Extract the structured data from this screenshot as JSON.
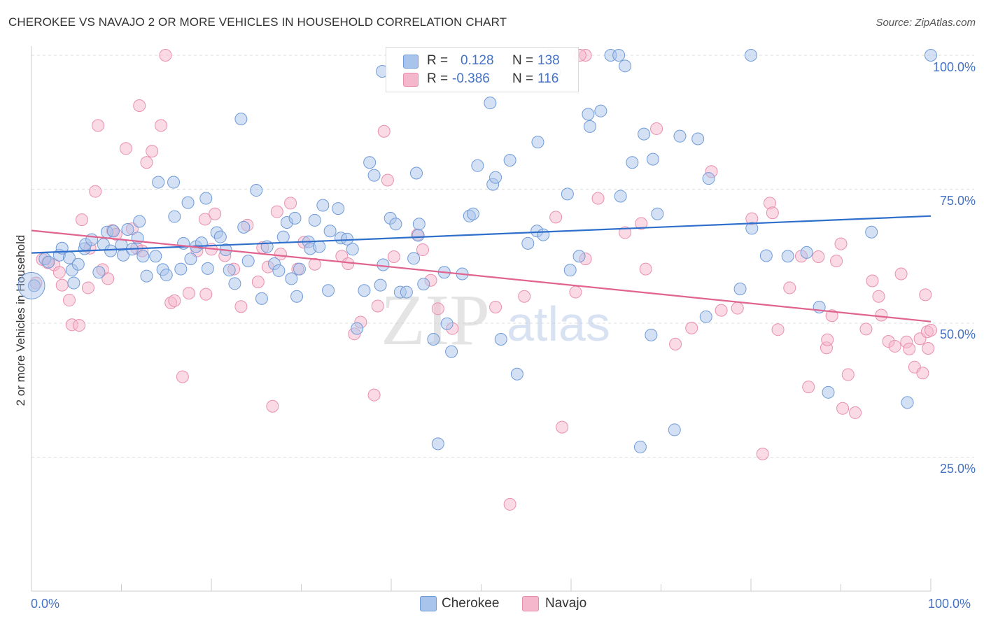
{
  "title": "CHEROKEE VS NAVAJO 2 OR MORE VEHICLES IN HOUSEHOLD CORRELATION CHART",
  "source": "Source: ZipAtlas.com",
  "watermark": {
    "zip": "ZIP",
    "atlas": "atlas"
  },
  "legend": {
    "rows": [
      {
        "r_label": "R =",
        "r_value": "0.128",
        "n_label": "N =",
        "n_value": "138"
      },
      {
        "r_label": "R =",
        "r_value": "-0.386",
        "n_label": "N =",
        "n_value": "116"
      }
    ]
  },
  "bottom_legend": {
    "cherokee": "Cherokee",
    "navajo": "Navajo"
  },
  "colors": {
    "cherokee_fill": "#a9c4ec",
    "cherokee_stroke": "#6f9bd8",
    "cherokee_line": "#2f6fcc",
    "navajo_fill": "#f5b7cb",
    "navajo_stroke": "#e98fae",
    "navajo_line": "#e0648f",
    "tick_text": "#4472c4",
    "grid": "#dddddd"
  },
  "chart_data": {
    "type": "scatter",
    "title": "CHEROKEE VS NAVAJO 2 OR MORE VEHICLES IN HOUSEHOLD CORRELATION CHART",
    "xlabel": "",
    "ylabel": "2 or more Vehicles in Household",
    "xlim": [
      0,
      100
    ],
    "ylim": [
      0,
      100
    ],
    "x_tick_labels": [
      "0.0%",
      "100.0%"
    ],
    "y_tick_labels": [
      "25.0%",
      "50.0%",
      "75.0%",
      "100.0%"
    ],
    "y_ticks": [
      25,
      50,
      75,
      100
    ],
    "grid": true,
    "legend_position": "top-center",
    "series": [
      {
        "name": "Cherokee",
        "r": 0.128,
        "n": 138,
        "trend": [
          [
            0,
            63.1
          ],
          [
            100,
            70.0
          ]
        ],
        "points": [
          [
            0.3,
            57.0
          ],
          [
            1.5,
            62.0
          ],
          [
            1.9,
            61.4
          ],
          [
            3.1,
            62.7
          ],
          [
            3.4,
            64.0
          ],
          [
            4.2,
            62.2
          ],
          [
            4.5,
            59.9
          ],
          [
            4.7,
            57.5
          ],
          [
            5.2,
            61.0
          ],
          [
            5.9,
            63.9
          ],
          [
            6.0,
            64.7
          ],
          [
            6.7,
            65.6
          ],
          [
            7.5,
            59.5
          ],
          [
            8.0,
            64.7
          ],
          [
            8.4,
            67.0
          ],
          [
            8.8,
            63.5
          ],
          [
            9.1,
            67.2
          ],
          [
            10.0,
            64.6
          ],
          [
            10.2,
            62.7
          ],
          [
            10.7,
            67.5
          ],
          [
            11.2,
            63.8
          ],
          [
            11.8,
            65.9
          ],
          [
            12.0,
            69.0
          ],
          [
            12.4,
            62.5
          ],
          [
            12.8,
            58.8
          ],
          [
            13.8,
            62.5
          ],
          [
            14.1,
            76.3
          ],
          [
            14.6,
            60.0
          ],
          [
            15.0,
            59.0
          ],
          [
            15.8,
            76.3
          ],
          [
            15.9,
            69.9
          ],
          [
            16.6,
            60.1
          ],
          [
            16.9,
            64.9
          ],
          [
            17.4,
            72.5
          ],
          [
            17.7,
            62.0
          ],
          [
            18.3,
            64.3
          ],
          [
            18.9,
            65.0
          ],
          [
            19.4,
            73.3
          ],
          [
            19.6,
            60.2
          ],
          [
            20.6,
            66.9
          ],
          [
            21.0,
            66.1
          ],
          [
            21.6,
            63.7
          ],
          [
            22.0,
            59.9
          ],
          [
            22.6,
            57.4
          ],
          [
            23.3,
            88.1
          ],
          [
            23.6,
            67.9
          ],
          [
            24.1,
            61.6
          ],
          [
            25.0,
            74.8
          ],
          [
            25.6,
            54.6
          ],
          [
            26.2,
            64.3
          ],
          [
            27.0,
            61.1
          ],
          [
            27.5,
            59.8
          ],
          [
            28.0,
            66.1
          ],
          [
            28.4,
            68.8
          ],
          [
            28.9,
            58.3
          ],
          [
            29.3,
            69.6
          ],
          [
            29.8,
            60.1
          ],
          [
            30.8,
            65.2
          ],
          [
            31.0,
            63.9
          ],
          [
            31.5,
            69.2
          ],
          [
            32.0,
            64.3
          ],
          [
            32.4,
            72.0
          ],
          [
            33.0,
            56.1
          ],
          [
            33.2,
            67.2
          ],
          [
            34.1,
            71.4
          ],
          [
            34.4,
            65.9
          ],
          [
            35.1,
            65.7
          ],
          [
            35.7,
            63.8
          ],
          [
            36.2,
            49.0
          ],
          [
            37.0,
            56.1
          ],
          [
            37.6,
            80.0
          ],
          [
            38.1,
            77.6
          ],
          [
            38.8,
            57.1
          ],
          [
            39.1,
            60.9
          ],
          [
            39.9,
            69.6
          ],
          [
            40.5,
            68.5
          ],
          [
            41.0,
            55.8
          ],
          [
            41.7,
            55.8
          ],
          [
            42.5,
            62.1
          ],
          [
            42.8,
            78.0
          ],
          [
            43.0,
            66.4
          ],
          [
            43.1,
            68.5
          ],
          [
            43.6,
            57.3
          ],
          [
            44.7,
            47.0
          ],
          [
            45.2,
            27.5
          ],
          [
            45.9,
            59.5
          ],
          [
            46.2,
            49.9
          ],
          [
            46.7,
            44.7
          ],
          [
            47.9,
            59.2
          ],
          [
            48.7,
            70.0
          ],
          [
            49.1,
            70.4
          ],
          [
            49.6,
            79.4
          ],
          [
            51.0,
            91.1
          ],
          [
            51.3,
            75.9
          ],
          [
            51.6,
            77.2
          ],
          [
            52.2,
            47.0
          ],
          [
            53.2,
            80.4
          ],
          [
            54.0,
            40.5
          ],
          [
            55.2,
            64.9
          ],
          [
            56.2,
            67.2
          ],
          [
            56.3,
            83.8
          ],
          [
            56.9,
            66.5
          ],
          [
            59.6,
            74.1
          ],
          [
            59.9,
            59.9
          ],
          [
            60.9,
            62.5
          ],
          [
            61.9,
            89.0
          ],
          [
            62.1,
            86.7
          ],
          [
            63.3,
            89.6
          ],
          [
            65.5,
            73.7
          ],
          [
            66.8,
            80.0
          ],
          [
            67.7,
            26.9
          ],
          [
            68.1,
            85.3
          ],
          [
            68.9,
            47.8
          ],
          [
            69.1,
            80.6
          ],
          [
            69.6,
            70.4
          ],
          [
            71.5,
            30.1
          ],
          [
            72.1,
            84.9
          ],
          [
            74.1,
            84.4
          ],
          [
            75.0,
            51.2
          ],
          [
            75.3,
            77.0
          ],
          [
            78.8,
            56.4
          ],
          [
            80.1,
            67.7
          ],
          [
            81.7,
            62.6
          ],
          [
            84.1,
            62.5
          ],
          [
            86.2,
            63.2
          ],
          [
            87.6,
            53.0
          ],
          [
            88.6,
            37.1
          ],
          [
            93.4,
            67.0
          ],
          [
            97.4,
            35.2
          ],
          [
            100.0,
            100.0
          ],
          [
            57.7,
            100.0
          ],
          [
            64.4,
            100.0
          ],
          [
            65.3,
            100.0
          ],
          [
            80.0,
            100.0
          ],
          [
            66.0,
            98.0
          ],
          [
            39.0,
            97.0
          ],
          [
            58.2,
            96.8
          ],
          [
            29.5,
            55.0
          ]
        ]
      },
      {
        "name": "Navajo",
        "r": -0.386,
        "n": 116,
        "trend": [
          [
            0,
            67.3
          ],
          [
            100,
            50.3
          ]
        ],
        "points": [
          [
            0.5,
            57.5
          ],
          [
            1.2,
            61.9
          ],
          [
            1.8,
            61.3
          ],
          [
            2.5,
            60.9
          ],
          [
            3.1,
            59.5
          ],
          [
            3.4,
            57.1
          ],
          [
            4.2,
            54.3
          ],
          [
            4.5,
            49.7
          ],
          [
            5.3,
            49.6
          ],
          [
            5.6,
            69.3
          ],
          [
            6.3,
            56.6
          ],
          [
            6.5,
            64.0
          ],
          [
            7.1,
            74.6
          ],
          [
            7.4,
            86.9
          ],
          [
            7.9,
            60.0
          ],
          [
            8.5,
            58.3
          ],
          [
            9.0,
            67.3
          ],
          [
            9.4,
            66.6
          ],
          [
            10.5,
            82.6
          ],
          [
            11.2,
            67.6
          ],
          [
            11.7,
            64.0
          ],
          [
            12.0,
            90.6
          ],
          [
            12.3,
            63.5
          ],
          [
            12.8,
            80.0
          ],
          [
            13.4,
            82.1
          ],
          [
            14.4,
            86.9
          ],
          [
            14.9,
            100.0
          ],
          [
            15.5,
            53.8
          ],
          [
            15.9,
            54.2
          ],
          [
            16.8,
            40.0
          ],
          [
            17.5,
            55.6
          ],
          [
            18.4,
            63.5
          ],
          [
            19.3,
            69.4
          ],
          [
            19.4,
            55.4
          ],
          [
            20.0,
            63.8
          ],
          [
            20.4,
            70.4
          ],
          [
            21.5,
            62.6
          ],
          [
            22.5,
            60.1
          ],
          [
            23.3,
            53.1
          ],
          [
            24.0,
            68.3
          ],
          [
            25.2,
            57.7
          ],
          [
            25.7,
            64.1
          ],
          [
            26.3,
            60.5
          ],
          [
            26.8,
            34.5
          ],
          [
            27.3,
            70.8
          ],
          [
            27.7,
            62.9
          ],
          [
            28.8,
            72.4
          ],
          [
            29.6,
            60.1
          ],
          [
            30.3,
            65.1
          ],
          [
            31.5,
            61.0
          ],
          [
            34.5,
            62.5
          ],
          [
            35.2,
            61.1
          ],
          [
            35.9,
            48.0
          ],
          [
            36.6,
            50.2
          ],
          [
            38.1,
            36.6
          ],
          [
            38.5,
            53.2
          ],
          [
            39.2,
            85.8
          ],
          [
            39.6,
            76.7
          ],
          [
            40.3,
            62.4
          ],
          [
            42.9,
            66.5
          ],
          [
            43.5,
            63.7
          ],
          [
            44.4,
            58.0
          ],
          [
            45.2,
            52.7
          ],
          [
            46.8,
            49.0
          ],
          [
            51.6,
            53.0
          ],
          [
            53.2,
            16.2
          ],
          [
            54.8,
            55.0
          ],
          [
            58.3,
            69.8
          ],
          [
            59.0,
            30.6
          ],
          [
            60.5,
            55.8
          ],
          [
            61.6,
            62.0
          ],
          [
            63.0,
            73.3
          ],
          [
            66.0,
            66.9
          ],
          [
            67.8,
            68.6
          ],
          [
            68.3,
            60.1
          ],
          [
            69.5,
            86.3
          ],
          [
            71.6,
            46.1
          ],
          [
            73.4,
            49.1
          ],
          [
            75.6,
            78.3
          ],
          [
            76.7,
            52.4
          ],
          [
            78.5,
            52.8
          ],
          [
            81.3,
            25.6
          ],
          [
            82.1,
            72.4
          ],
          [
            83.0,
            48.8
          ],
          [
            84.3,
            56.6
          ],
          [
            85.6,
            62.5
          ],
          [
            86.4,
            38.1
          ],
          [
            87.5,
            62.4
          ],
          [
            88.4,
            45.4
          ],
          [
            89.0,
            51.4
          ],
          [
            89.5,
            61.6
          ],
          [
            90.2,
            34.1
          ],
          [
            90.8,
            40.4
          ],
          [
            91.6,
            33.3
          ],
          [
            92.8,
            48.9
          ],
          [
            93.5,
            57.9
          ],
          [
            94.2,
            55.0
          ],
          [
            94.5,
            51.5
          ],
          [
            95.3,
            46.6
          ],
          [
            96.0,
            45.7
          ],
          [
            96.7,
            59.2
          ],
          [
            97.3,
            46.5
          ],
          [
            97.6,
            45.2
          ],
          [
            98.2,
            41.8
          ],
          [
            98.8,
            47.1
          ],
          [
            99.1,
            40.7
          ],
          [
            99.4,
            55.3
          ],
          [
            99.6,
            48.4
          ],
          [
            99.7,
            45.3
          ],
          [
            100.0,
            48.7
          ],
          [
            88.5,
            46.9
          ],
          [
            90.0,
            64.8
          ],
          [
            80.1,
            69.5
          ],
          [
            82.4,
            70.6
          ],
          [
            61.6,
            100.0
          ],
          [
            61.0,
            100.0
          ]
        ]
      }
    ]
  }
}
